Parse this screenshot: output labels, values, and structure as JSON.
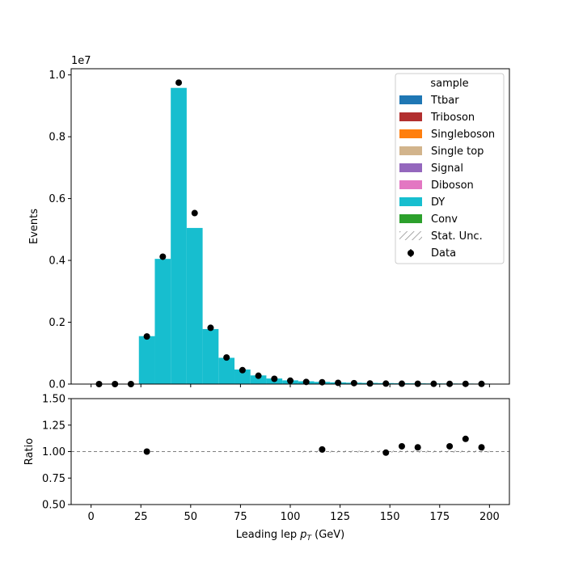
{
  "colors": {
    "Ttbar": "#1f77b4",
    "Triboson": "#b22f2f",
    "Singleboson": "#ff7f0e",
    "Single top": "#d2b48c",
    "Signal": "#9467bd",
    "Diboson": "#e377c2",
    "DY": "#17becf",
    "Conv": "#2ca02c",
    "data": "#000000",
    "ratio_line": "#808080"
  },
  "chart_data": [
    {
      "type": "bar",
      "subtype": "stacked-histogram",
      "ylabel": "Events",
      "y_scale_label": "1e7",
      "xlim": [
        -10,
        210
      ],
      "ylim": [
        0,
        10200000
      ],
      "yticks": [
        0,
        2000000,
        4000000,
        6000000,
        8000000,
        10000000
      ],
      "ytick_labels": [
        "0.0",
        "0.2",
        "0.4",
        "0.6",
        "0.8",
        "1.0"
      ],
      "bin_edges": [
        0,
        8,
        16,
        24,
        32,
        40,
        48,
        56,
        64,
        72,
        80,
        88,
        96,
        104,
        112,
        120,
        128,
        136,
        144,
        152,
        160,
        168,
        176,
        184,
        192,
        200
      ],
      "series": [
        {
          "name": "DY",
          "values": [
            0,
            0,
            0,
            1550000,
            4050000,
            9580000,
            5050000,
            1780000,
            850000,
            470000,
            280000,
            180000,
            120000,
            90000,
            70000,
            55000,
            45000,
            38000,
            32000,
            28000,
            24000,
            21000,
            19000,
            17000,
            15000
          ]
        }
      ],
      "data": {
        "name": "Data",
        "x": [
          4,
          12,
          20,
          28,
          36,
          44,
          52,
          60,
          68,
          76,
          84,
          92,
          100,
          108,
          116,
          124,
          132,
          140,
          148,
          156,
          164,
          172,
          180,
          188,
          196
        ],
        "y": [
          0,
          0,
          0,
          1540000,
          4120000,
          9750000,
          5530000,
          1820000,
          860000,
          450000,
          270000,
          170000,
          110000,
          70000,
          60000,
          40000,
          30000,
          20000,
          15000,
          12000,
          10000,
          9000,
          8000,
          7000,
          6000
        ]
      },
      "legend": {
        "title": "sample",
        "position": "top-right",
        "entries": [
          "Ttbar",
          "Triboson",
          "Singleboson",
          "Single top",
          "Signal",
          "Diboson",
          "DY",
          "Conv",
          "Stat. Unc.",
          "Data"
        ]
      }
    },
    {
      "type": "scatter",
      "subtype": "ratio",
      "xlabel_prefix": "Leading lep ",
      "xlabel_symbol": "p",
      "xlabel_sub": "T",
      "xlabel_suffix": " (GeV)",
      "ylabel": "Ratio",
      "xlim": [
        -10,
        210
      ],
      "ylim": [
        0.5,
        1.5
      ],
      "xticks": [
        0,
        25,
        50,
        75,
        100,
        125,
        150,
        175,
        200
      ],
      "yticks": [
        0.5,
        0.75,
        1.0,
        1.25,
        1.5
      ],
      "ytick_labels": [
        "0.50",
        "0.75",
        "1.00",
        "1.25",
        "1.50"
      ],
      "reference_line": 1.0,
      "x": [
        28,
        116,
        148,
        156,
        164,
        180,
        188,
        196
      ],
      "y": [
        1.0,
        1.02,
        0.99,
        1.05,
        1.04,
        1.05,
        1.12,
        1.04
      ]
    }
  ]
}
